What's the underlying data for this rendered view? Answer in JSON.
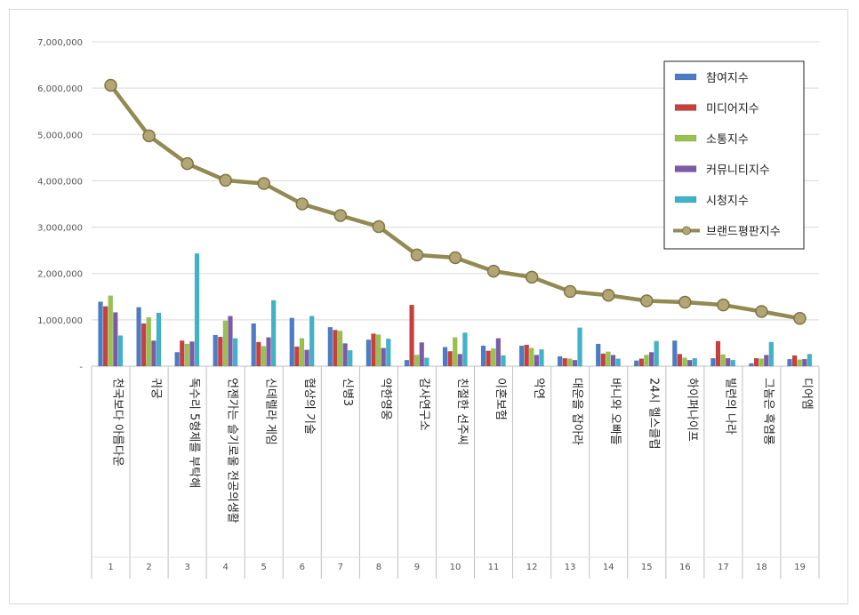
{
  "chart_data": {
    "type": "bar",
    "title": "",
    "xlabel": "",
    "ylabel": "",
    "ylim": [
      0,
      7000000
    ],
    "yticks": [
      "-",
      "1,000,000",
      "2,000,000",
      "3,000,000",
      "4,000,000",
      "5,000,000",
      "6,000,000",
      "7,000,000"
    ],
    "grid": true,
    "legend_position": "top-right",
    "numbers": [
      "1",
      "2",
      "3",
      "4",
      "5",
      "6",
      "7",
      "8",
      "9",
      "10",
      "11",
      "12",
      "13",
      "14",
      "15",
      "16",
      "17",
      "18",
      "19"
    ],
    "categories": [
      "천국보다 아름다운",
      "귀궁",
      "독수리 5형제를 부탁해",
      "언젠가는 슬기로울 전공의생활",
      "신데렐라 게임",
      "협상의 기술",
      "신병3",
      "약한영웅",
      "감사연구소",
      "친절한 선주씨",
      "이혼보험",
      "악연",
      "대운을 잡아라",
      "바니와 오빠들",
      "24시 헬스클럽",
      "하이퍼나이프",
      "빌런의 나라",
      "그놈은 흑염룡",
      "디어엠"
    ],
    "series": [
      {
        "name": "참여지수",
        "type": "bar",
        "color": "#4a7cc7",
        "values": [
          1390000,
          1270000,
          300000,
          670000,
          920000,
          1040000,
          840000,
          570000,
          130000,
          410000,
          440000,
          440000,
          210000,
          480000,
          120000,
          550000,
          170000,
          60000,
          150000
        ]
      },
      {
        "name": "미디어지수",
        "type": "bar",
        "color": "#c8403c",
        "values": [
          1290000,
          920000,
          550000,
          630000,
          520000,
          420000,
          780000,
          700000,
          1320000,
          320000,
          330000,
          460000,
          170000,
          270000,
          160000,
          260000,
          540000,
          170000,
          230000
        ]
      },
      {
        "name": "소통지수",
        "type": "bar",
        "color": "#99c24d",
        "values": [
          1520000,
          1050000,
          480000,
          980000,
          430000,
          600000,
          760000,
          680000,
          240000,
          620000,
          380000,
          390000,
          160000,
          310000,
          240000,
          180000,
          250000,
          160000,
          140000
        ]
      },
      {
        "name": "커뮤니티지수",
        "type": "bar",
        "color": "#7d5aa8",
        "values": [
          1160000,
          550000,
          530000,
          1080000,
          620000,
          350000,
          490000,
          390000,
          510000,
          260000,
          600000,
          240000,
          130000,
          240000,
          300000,
          130000,
          170000,
          240000,
          150000
        ]
      },
      {
        "name": "시청지수",
        "type": "bar",
        "color": "#3fb3c9",
        "values": [
          660000,
          1150000,
          2430000,
          600000,
          1420000,
          1080000,
          340000,
          590000,
          180000,
          720000,
          230000,
          360000,
          830000,
          160000,
          540000,
          170000,
          130000,
          520000,
          260000
        ]
      },
      {
        "name": "브랜드평판지수",
        "type": "line",
        "color": "#938953",
        "values": [
          6060000,
          4970000,
          4370000,
          4010000,
          3940000,
          3500000,
          3250000,
          3010000,
          2400000,
          2340000,
          2050000,
          1920000,
          1610000,
          1530000,
          1410000,
          1380000,
          1320000,
          1180000,
          1030000
        ]
      }
    ]
  }
}
